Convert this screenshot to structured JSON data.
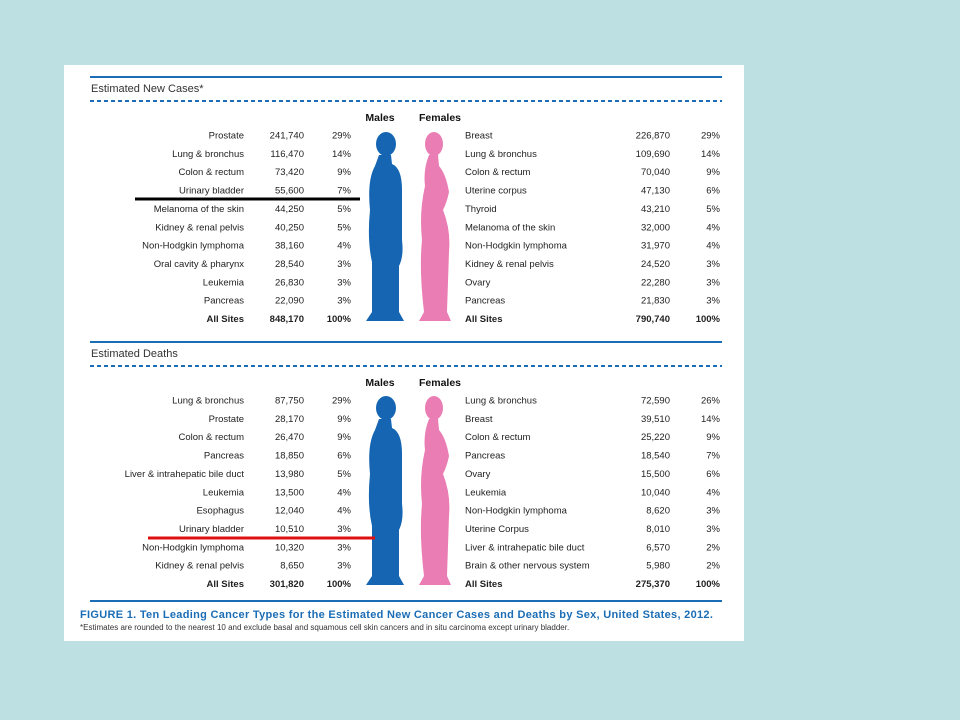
{
  "new_cases": {
    "title": "Estimated New Cases*",
    "males_header": "Males",
    "females_header": "Females",
    "males": [
      [
        "Prostate",
        "241,740",
        "29%"
      ],
      [
        "Lung & bronchus",
        "116,470",
        "14%"
      ],
      [
        "Colon & rectum",
        "73,420",
        "9%"
      ],
      [
        "Urinary bladder",
        "55,600",
        "7%"
      ],
      [
        "Melanoma of the skin",
        "44,250",
        "5%"
      ],
      [
        "Kidney & renal pelvis",
        "40,250",
        "5%"
      ],
      [
        "Non-Hodgkin lymphoma",
        "38,160",
        "4%"
      ],
      [
        "Oral cavity & pharynx",
        "28,540",
        "3%"
      ],
      [
        "Leukemia",
        "26,830",
        "3%"
      ],
      [
        "Pancreas",
        "22,090",
        "3%"
      ],
      [
        "All Sites",
        "848,170",
        "100%"
      ]
    ],
    "females": [
      [
        "Breast",
        "226,870",
        "29%"
      ],
      [
        "Lung & bronchus",
        "109,690",
        "14%"
      ],
      [
        "Colon & rectum",
        "70,040",
        "9%"
      ],
      [
        "Uterine corpus",
        "47,130",
        "6%"
      ],
      [
        "Thyroid",
        "43,210",
        "5%"
      ],
      [
        "Melanoma of the skin",
        "32,000",
        "4%"
      ],
      [
        "Non-Hodgkin lymphoma",
        "31,970",
        "4%"
      ],
      [
        "Kidney & renal pelvis",
        "24,520",
        "3%"
      ],
      [
        "Ovary",
        "22,280",
        "3%"
      ],
      [
        "Pancreas",
        "21,830",
        "3%"
      ],
      [
        "All Sites",
        "790,740",
        "100%"
      ]
    ]
  },
  "deaths": {
    "title": "Estimated Deaths",
    "males_header": "Males",
    "females_header": "Females",
    "males": [
      [
        "Lung & bronchus",
        "87,750",
        "29%"
      ],
      [
        "Prostate",
        "28,170",
        "9%"
      ],
      [
        "Colon & rectum",
        "26,470",
        "9%"
      ],
      [
        "Pancreas",
        "18,850",
        "6%"
      ],
      [
        "Liver & intrahepatic bile duct",
        "13,980",
        "5%"
      ],
      [
        "Leukemia",
        "13,500",
        "4%"
      ],
      [
        "Esophagus",
        "12,040",
        "4%"
      ],
      [
        "Urinary bladder",
        "10,510",
        "3%"
      ],
      [
        "Non-Hodgkin lymphoma",
        "10,320",
        "3%"
      ],
      [
        "Kidney & renal pelvis",
        "8,650",
        "3%"
      ],
      [
        "All Sites",
        "301,820",
        "100%"
      ]
    ],
    "females": [
      [
        "Lung & bronchus",
        "72,590",
        "26%"
      ],
      [
        "Breast",
        "39,510",
        "14%"
      ],
      [
        "Colon & rectum",
        "25,220",
        "9%"
      ],
      [
        "Pancreas",
        "18,540",
        "7%"
      ],
      [
        "Ovary",
        "15,500",
        "6%"
      ],
      [
        "Leukemia",
        "10,040",
        "4%"
      ],
      [
        "Non-Hodgkin lymphoma",
        "8,620",
        "3%"
      ],
      [
        "Uterine Corpus",
        "8,010",
        "3%"
      ],
      [
        "Liver & intrahepatic bile duct",
        "6,570",
        "2%"
      ],
      [
        "Brain & other nervous system",
        "5,980",
        "2%"
      ],
      [
        "All Sites",
        "275,370",
        "100%"
      ]
    ]
  },
  "caption": "FIGURE  1. Ten Leading Cancer Types for the Estimated New Cancer Cases and Deaths by Sex, United States, 2012.",
  "footnote": "*Estimates are rounded to the nearest 10 and exclude basal and squamous cell skin cancers and in situ carcinoma except urinary bladder."
}
